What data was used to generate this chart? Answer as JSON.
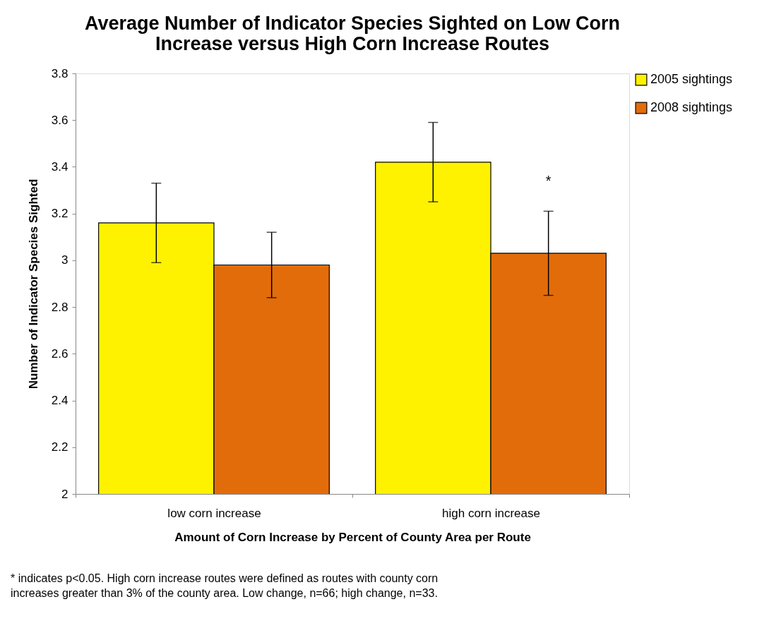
{
  "chart_data": {
    "type": "bar",
    "title": "Average Number of Indicator Species Sighted on Low Corn Increase versus High Corn Increase Routes",
    "xlabel": "Amount of Corn Increase by Percent of County Area per Route",
    "ylabel": "Number of Indicator Species Sighted",
    "categories": [
      "low corn increase",
      "high corn increase"
    ],
    "series": [
      {
        "name": "2005 sightings",
        "color": "#fff200",
        "values": [
          3.16,
          3.42
        ],
        "errors": [
          0.17,
          0.17
        ]
      },
      {
        "name": "2008 sightings",
        "color": "#e36c0a",
        "values": [
          2.98,
          3.03
        ],
        "errors": [
          0.14,
          0.18
        ]
      }
    ],
    "ylim": [
      2,
      3.8
    ],
    "yticks": [
      2,
      2.2,
      2.4,
      2.6,
      2.8,
      3,
      3.2,
      3.4,
      3.6,
      3.8
    ],
    "grid": false,
    "legend": "right",
    "annotations": [
      "*",
      "* indicates p<0.05. High corn increase routes were defined as routes with county corn increases greater than 3% of the county area. Low change, n=66; high change, n=33."
    ]
  }
}
